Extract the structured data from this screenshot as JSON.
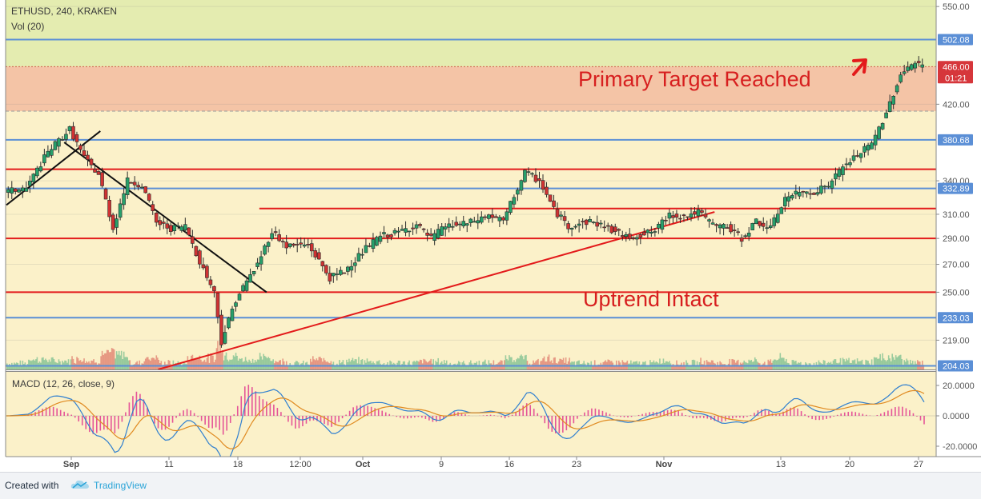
{
  "header": {
    "symbol_line": "ETHUSD, 240, KRAKEN",
    "volume_label": "Vol (20)"
  },
  "annotations": {
    "primary_target": "Primary Target Reached",
    "uptrend": "Uptrend Intact"
  },
  "macd": {
    "label": "MACD (12, 26, close, 9)",
    "ticks": [
      "20.0000",
      "0.0000",
      "-20.0000"
    ]
  },
  "footer": {
    "created_with": "Created with",
    "brand": "TradingView"
  },
  "colors": {
    "background": "#fbf1c9",
    "target_zone": "#f4c4a6",
    "upper_zone": "#e4ecb0",
    "support_line": "#e31b1b",
    "level_line": "#5b8fd6",
    "trend_line": "#111111",
    "up_candle": "#27a06b",
    "down_candle": "#cf3333"
  },
  "chart_data": {
    "type": "candlestick",
    "title": "ETHUSD, 240, KRAKEN",
    "y_scale": "log",
    "ylim": [
      202,
      560
    ],
    "y_ticks": [
      550,
      420,
      340,
      310,
      290,
      270,
      250,
      219
    ],
    "highlighted_levels": [
      "502.08",
      "380.68",
      "332.89",
      "233.03",
      "204.03"
    ],
    "current_price": "466.00",
    "countdown": "01:21",
    "x_ticks": [
      "Sep",
      "11",
      "18",
      "12:00",
      "Oct",
      "9",
      "16",
      "23",
      "Nov",
      "13",
      "20",
      "27"
    ],
    "zones": [
      {
        "from": 466,
        "to": 550,
        "label": "upper zone"
      },
      {
        "from": 412,
        "to": 466,
        "label": "target zone"
      }
    ],
    "horizontal_lines": [
      {
        "value": 502.08,
        "color": "blue"
      },
      {
        "value": 380.68,
        "color": "blue"
      },
      {
        "value": 332.89,
        "color": "blue"
      },
      {
        "value": 233.03,
        "color": "blue"
      },
      {
        "value": 204.03,
        "color": "blue"
      },
      {
        "value": 351,
        "color": "red"
      },
      {
        "value": 290,
        "color": "red"
      },
      {
        "value": 250,
        "color": "red"
      },
      {
        "value": 315,
        "color": "red",
        "starts_at": "Sep 28"
      }
    ],
    "trend_lines": [
      {
        "name": "early uptrend",
        "points": [
          [
            "Aug 24",
            318
          ],
          [
            "Sep 6",
            390
          ]
        ]
      },
      {
        "name": "downtrend",
        "points": [
          [
            "Sep 1",
            378
          ],
          [
            "Sep 29",
            250
          ]
        ]
      },
      {
        "name": "uptrend",
        "points": [
          [
            "Sep 14",
            202
          ],
          [
            "Nov 30",
            312
          ]
        ]
      }
    ],
    "price_path": [
      [
        "Aug 24",
        330
      ],
      [
        "Aug 27",
        333
      ],
      [
        "Aug 30",
        368
      ],
      [
        "Sep 2",
        392
      ],
      [
        "Sep 4",
        362
      ],
      [
        "Sep 6",
        346
      ],
      [
        "Sep 8",
        298
      ],
      [
        "Sep 10",
        340
      ],
      [
        "Sep 12",
        336
      ],
      [
        "Sep 14",
        303
      ],
      [
        "Sep 16",
        298
      ],
      [
        "Sep 18",
        300
      ],
      [
        "Sep 20",
        272
      ],
      [
        "Sep 22",
        250
      ],
      [
        "Sep 23",
        218
      ],
      [
        "Sep 25",
        245
      ],
      [
        "Sep 28",
        270
      ],
      [
        "Sep 30",
        296
      ],
      [
        "Oct 2",
        284
      ],
      [
        "Oct 5",
        285
      ],
      [
        "Oct 8",
        260
      ],
      [
        "Oct 10",
        265
      ],
      [
        "Oct 13",
        282
      ],
      [
        "Oct 15",
        292
      ],
      [
        "Oct 17",
        294
      ],
      [
        "Oct 20",
        301
      ],
      [
        "Oct 22",
        290
      ],
      [
        "Oct 24",
        300
      ],
      [
        "Oct 27",
        302
      ],
      [
        "Oct 30",
        309
      ],
      [
        "Nov 1",
        304
      ],
      [
        "Nov 4",
        348
      ],
      [
        "Nov 6",
        340
      ],
      [
        "Nov 8",
        314
      ],
      [
        "Nov 10",
        300
      ],
      [
        "Nov 13",
        304
      ],
      [
        "Nov 15",
        300
      ],
      [
        "Nov 18",
        291
      ],
      [
        "Nov 20",
        293
      ],
      [
        "Nov 22",
        296
      ],
      [
        "Nov 24",
        310
      ],
      [
        "Nov 26",
        308
      ],
      [
        "Nov 28",
        312
      ],
      [
        "Nov 30",
        301
      ],
      [
        "Dec 2",
        299
      ],
      [
        "Dec 4",
        290
      ],
      [
        "Dec 6",
        304
      ],
      [
        "Dec 8",
        298
      ],
      [
        "Dec 10",
        324
      ],
      [
        "Dec 12",
        329
      ],
      [
        "Dec 14",
        330
      ],
      [
        "Dec 16",
        336
      ],
      [
        "Dec 18",
        353
      ],
      [
        "Dec 20",
        365
      ],
      [
        "Dec 22",
        376
      ],
      [
        "Dec 24",
        410
      ],
      [
        "Dec 26",
        456
      ],
      [
        "Dec 27",
        466
      ],
      [
        "Dec 28",
        470
      ],
      [
        "Dec 29",
        466
      ]
    ]
  }
}
